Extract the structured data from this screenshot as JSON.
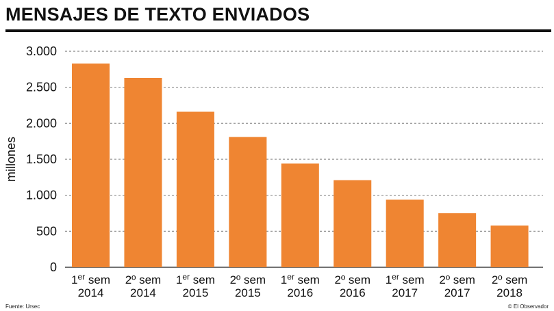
{
  "header": {
    "title": "MENSAJES DE TEXTO ENVIADOS"
  },
  "footer": {
    "source": "Fuente: Ursec",
    "credit": "© El Observador"
  },
  "colors": {
    "bar": "#EF8532",
    "grid": "#888888",
    "axis": "#444444"
  },
  "chart_data": {
    "type": "bar",
    "title": "MENSAJES DE TEXTO ENVIADOS",
    "xlabel": "",
    "ylabel": "millones",
    "ylim": [
      0,
      3000
    ],
    "yticks": [
      0,
      500,
      1000,
      1500,
      2000,
      2500,
      3000
    ],
    "ytick_labels": [
      "0",
      "500",
      "1.000",
      "1.500",
      "2.000",
      "2.500",
      "3.000"
    ],
    "grid": true,
    "categories": [
      {
        "pre": "1",
        "sup": "er",
        "post": " sem",
        "year": "2014"
      },
      {
        "pre": "2º sem",
        "sup": "",
        "post": "",
        "year": "2014"
      },
      {
        "pre": "1",
        "sup": "er",
        "post": " sem",
        "year": "2015"
      },
      {
        "pre": "2º sem",
        "sup": "",
        "post": "",
        "year": "2015"
      },
      {
        "pre": "1",
        "sup": "er",
        "post": " sem",
        "year": "2016"
      },
      {
        "pre": "2º sem",
        "sup": "",
        "post": "",
        "year": "2016"
      },
      {
        "pre": "1",
        "sup": "er",
        "post": " sem",
        "year": "2017"
      },
      {
        "pre": "2º sem",
        "sup": "",
        "post": "",
        "year": "2017"
      },
      {
        "pre": "2º sem",
        "sup": "",
        "post": "",
        "year": "2018"
      }
    ],
    "values": [
      2830,
      2630,
      2160,
      1810,
      1440,
      1210,
      940,
      750,
      580
    ]
  }
}
